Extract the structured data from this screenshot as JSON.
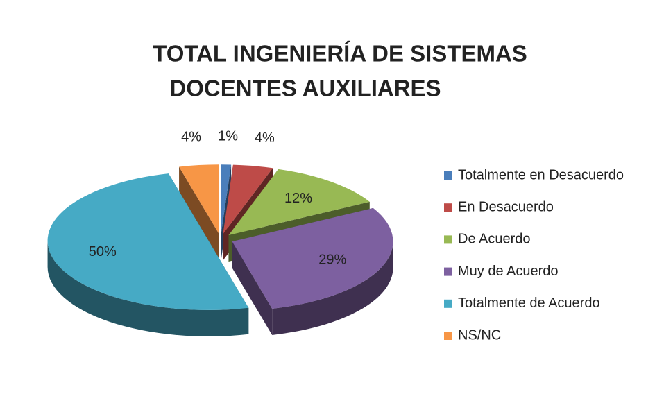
{
  "chart_data": {
    "type": "pie",
    "title": [
      "TOTAL  INGENIERÍA DE SISTEMAS",
      "DOCENTES AUXILIARES"
    ],
    "categories": [
      "Totalmente en Desacuerdo",
      "En Desacuerdo",
      "De Acuerdo",
      "Muy de Acuerdo",
      "Totalmente de Acuerdo",
      "NS/NC"
    ],
    "values": [
      1,
      4,
      12,
      29,
      50,
      4
    ],
    "value_labels": [
      "1%",
      "4%",
      "12%",
      "29%",
      "50%",
      "4%"
    ],
    "colors": [
      "#4a7ebb",
      "#be4b48",
      "#98b954",
      "#7d60a0",
      "#46aac5",
      "#f79646"
    ],
    "legend": "right"
  }
}
